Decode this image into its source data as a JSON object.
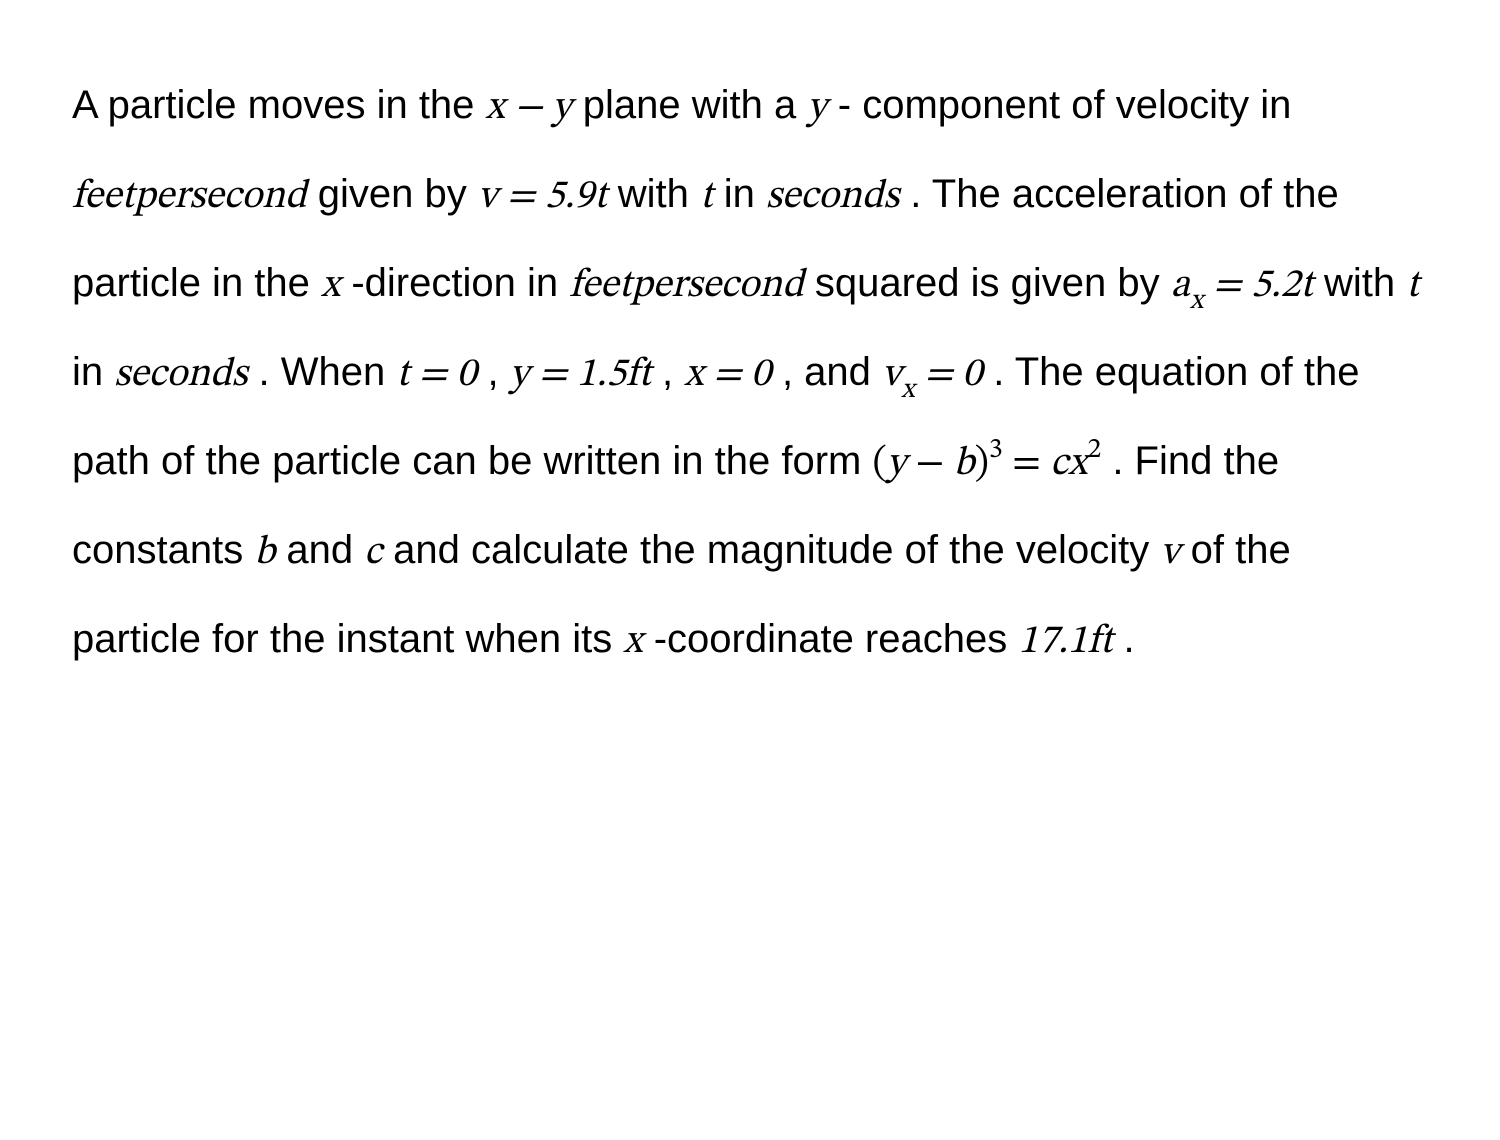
{
  "problem": {
    "seg1": "A particle moves in the ",
    "math_xy": "x − y",
    "seg2": " plane with a ",
    "math_y": "y",
    "seg3": " -",
    "seg4": "component of velocity in ",
    "math_fps": "feetpersecond",
    "seg5": " given by ",
    "math_v_eq": "v = 5.9t",
    "seg6": " with ",
    "math_t1": "t",
    "seg7": " in ",
    "math_seconds1": "seconds",
    "seg8": " . The acceleration of ",
    "seg9": "the particle in the ",
    "math_x1": "x",
    "seg10": " -direction in ",
    "seg11": "squared is given by ",
    "ax_var_a": "a",
    "ax_sub_x": "x",
    "ax_eq_rest": " = 5.2t",
    "seg12": " with ",
    "math_t2": "t",
    "seg13": " in ",
    "math_seconds2": "seconds",
    "seg14": " . ",
    "seg15": "When ",
    "math_t0": "t = 0",
    "seg16": " , ",
    "math_y0": "y = 1.5ft",
    "seg17": " , ",
    "math_x0": "x = 0",
    "seg18": " , and ",
    "vx_var_v": "v",
    "vx_sub_x": "x",
    "vx_eq_rest": " = 0",
    "seg19": " . ",
    "seg20": "The equation of the path of the particle can be ",
    "seg21": "written in the form ",
    "path_lparen": "(",
    "path_y": "y",
    "path_minus": " − ",
    "path_b": "b",
    "path_rparen": ")",
    "path_sup3": "3",
    "path_eq": " = ",
    "path_c": "c",
    "path_x": "x",
    "path_sup2": "2",
    "seg22": " . Find the ",
    "seg23": "constants ",
    "math_b": "b",
    "seg24": " and ",
    "math_c": "c",
    "seg25": " and calculate the magnitude of ",
    "seg26": "the velocity ",
    "math_v": "v",
    "seg27": " of the particle for the instant when ",
    "seg28": "its ",
    "math_x2": "x",
    "seg29": " -coordinate reaches ",
    "math_xf": "17.1ft",
    "seg30": " ."
  },
  "style": {
    "background_color": "#ffffff",
    "text_color": "#000000",
    "font_size_pt": 30,
    "line_height": 2.15,
    "math_font": "Cambria Math",
    "body_font": "system-ui"
  }
}
